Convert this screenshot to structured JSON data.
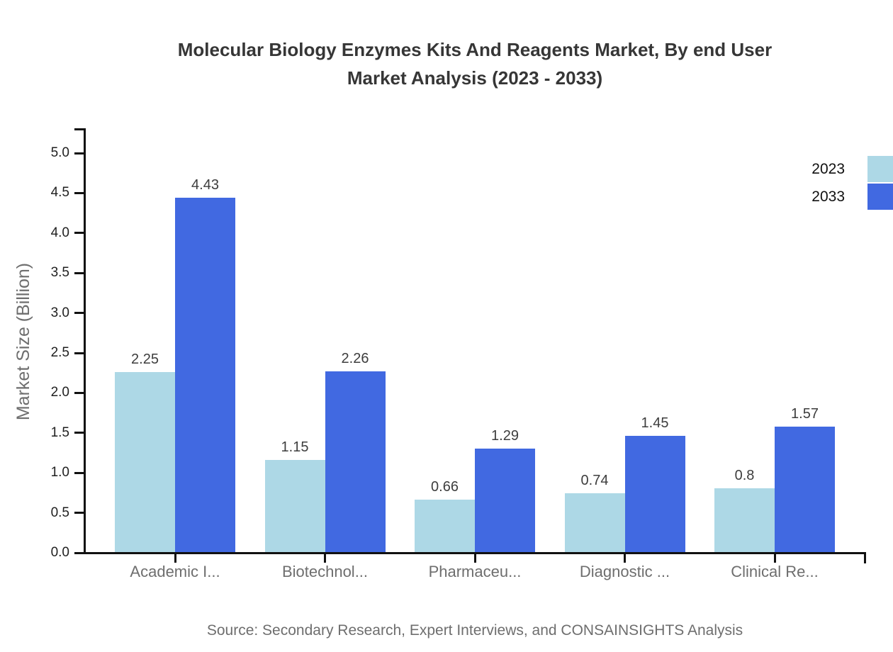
{
  "title": {
    "line1": "Molecular Biology Enzymes Kits And Reagents Market, By end User",
    "line2": "Market Analysis (2023 - 2033)"
  },
  "legend": {
    "items": [
      {
        "label": "2023",
        "color": "#ADD8E6"
      },
      {
        "label": "2033",
        "color": "#4169E1"
      }
    ]
  },
  "source": "Source: Secondary Research, Expert Interviews, and CONSAINSIGHTS Analysis",
  "chart_data": {
    "type": "bar",
    "title": "Molecular Biology Enzymes Kits And Reagents Market, By end User Market Analysis (2023 - 2033)",
    "categories": [
      "Academic I...",
      "Biotechnol...",
      "Pharmaceu...",
      "Diagnostic ...",
      "Clinical Re..."
    ],
    "series": [
      {
        "name": "2023",
        "color": "#ADD8E6",
        "values": [
          2.25,
          1.15,
          0.66,
          0.74,
          0.8
        ]
      },
      {
        "name": "2033",
        "color": "#4169E1",
        "values": [
          4.43,
          2.26,
          1.29,
          1.45,
          1.57
        ]
      }
    ],
    "xlabel": "",
    "ylabel": "Market Size (Billion)",
    "ylim": [
      0,
      5.0
    ],
    "ytick_step": 0.5,
    "yticks": [
      "0.0",
      "0.5",
      "1.0",
      "1.5",
      "2.0",
      "2.5",
      "3.0",
      "3.5",
      "4.0",
      "4.5",
      "5.0"
    ],
    "grid": false,
    "legend_position": "top-right",
    "axis_color": "#111111",
    "value_label_color": "#3d3d3d",
    "category_label_color": "#6e6e6e"
  }
}
